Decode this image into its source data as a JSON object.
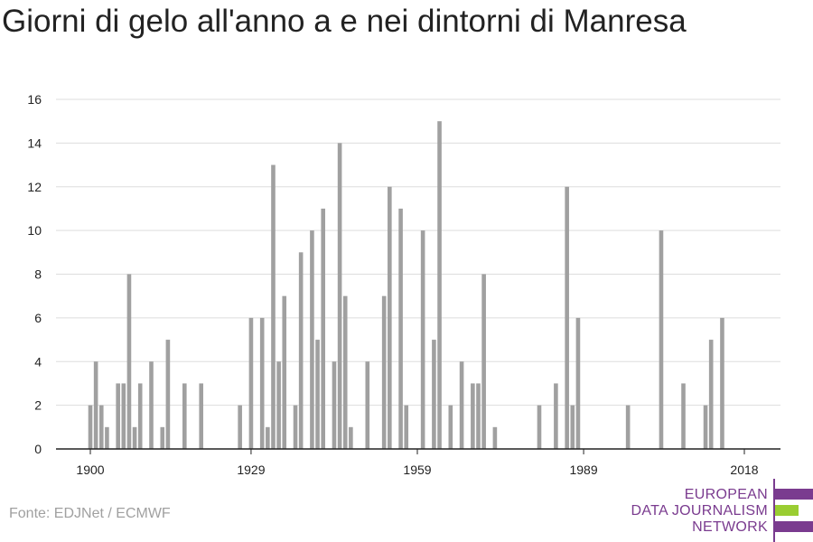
{
  "title": "Giorni di gelo all'anno a e nei dintorni di Manresa",
  "source": "Fonte: EDJNet / ECMWF",
  "logo": {
    "line1": "EUROPEAN",
    "line2": "DATA JOURNALISM",
    "line3": "NETWORK",
    "color_primary": "#7a3b8f",
    "color_accent": "#9acd32"
  },
  "colors": {
    "bar": "#a0a0a0",
    "grid": "#dddddd",
    "axis": "#222222"
  },
  "chart_data": {
    "type": "bar",
    "title": "Giorni di gelo all'anno a e nei dintorni di Manresa",
    "xlabel": "",
    "ylabel": "",
    "ylim": [
      0,
      16
    ],
    "yticks": [
      0,
      2,
      4,
      6,
      8,
      10,
      12,
      14,
      16
    ],
    "xticks": [
      1900,
      1929,
      1959,
      1989,
      2018
    ],
    "grid": true,
    "legend": "none",
    "x": [
      1900,
      1901,
      1902,
      1903,
      1904,
      1905,
      1906,
      1907,
      1908,
      1909,
      1910,
      1911,
      1912,
      1913,
      1914,
      1915,
      1916,
      1917,
      1918,
      1919,
      1920,
      1921,
      1922,
      1923,
      1924,
      1925,
      1926,
      1927,
      1928,
      1929,
      1930,
      1931,
      1932,
      1933,
      1934,
      1935,
      1936,
      1937,
      1938,
      1939,
      1940,
      1941,
      1942,
      1943,
      1944,
      1945,
      1946,
      1947,
      1948,
      1949,
      1950,
      1951,
      1952,
      1953,
      1954,
      1955,
      1956,
      1957,
      1958,
      1959,
      1960,
      1961,
      1962,
      1963,
      1964,
      1965,
      1966,
      1967,
      1968,
      1969,
      1970,
      1971,
      1972,
      1973,
      1974,
      1975,
      1976,
      1977,
      1978,
      1979,
      1980,
      1981,
      1982,
      1983,
      1984,
      1985,
      1986,
      1987,
      1988,
      1989,
      1990,
      1991,
      1992,
      1993,
      1994,
      1995,
      1996,
      1997,
      1998,
      1999,
      2000,
      2001,
      2002,
      2003,
      2004,
      2005,
      2006,
      2007,
      2008,
      2009,
      2010,
      2011,
      2012,
      2013,
      2014,
      2015,
      2016,
      2017,
      2018
    ],
    "values": [
      2,
      4,
      2,
      1,
      0,
      3,
      3,
      8,
      1,
      3,
      0,
      4,
      0,
      1,
      5,
      0,
      0,
      3,
      0,
      0,
      3,
      0,
      0,
      0,
      0,
      0,
      0,
      2,
      0,
      6,
      0,
      6,
      1,
      13,
      4,
      7,
      0,
      2,
      9,
      0,
      10,
      5,
      11,
      0,
      4,
      14,
      7,
      1,
      0,
      0,
      4,
      0,
      0,
      7,
      12,
      0,
      11,
      2,
      0,
      0,
      10,
      0,
      5,
      15,
      0,
      2,
      0,
      4,
      0,
      3,
      3,
      8,
      0,
      1,
      0,
      0,
      0,
      0,
      0,
      0,
      0,
      2,
      0,
      0,
      3,
      0,
      12,
      2,
      6,
      0,
      0,
      0,
      0,
      0,
      0,
      0,
      0,
      2,
      0,
      0,
      0,
      0,
      0,
      10,
      0,
      0,
      0,
      3,
      0,
      0,
      0,
      2,
      5,
      0,
      6,
      0,
      0,
      0,
      0
    ]
  }
}
